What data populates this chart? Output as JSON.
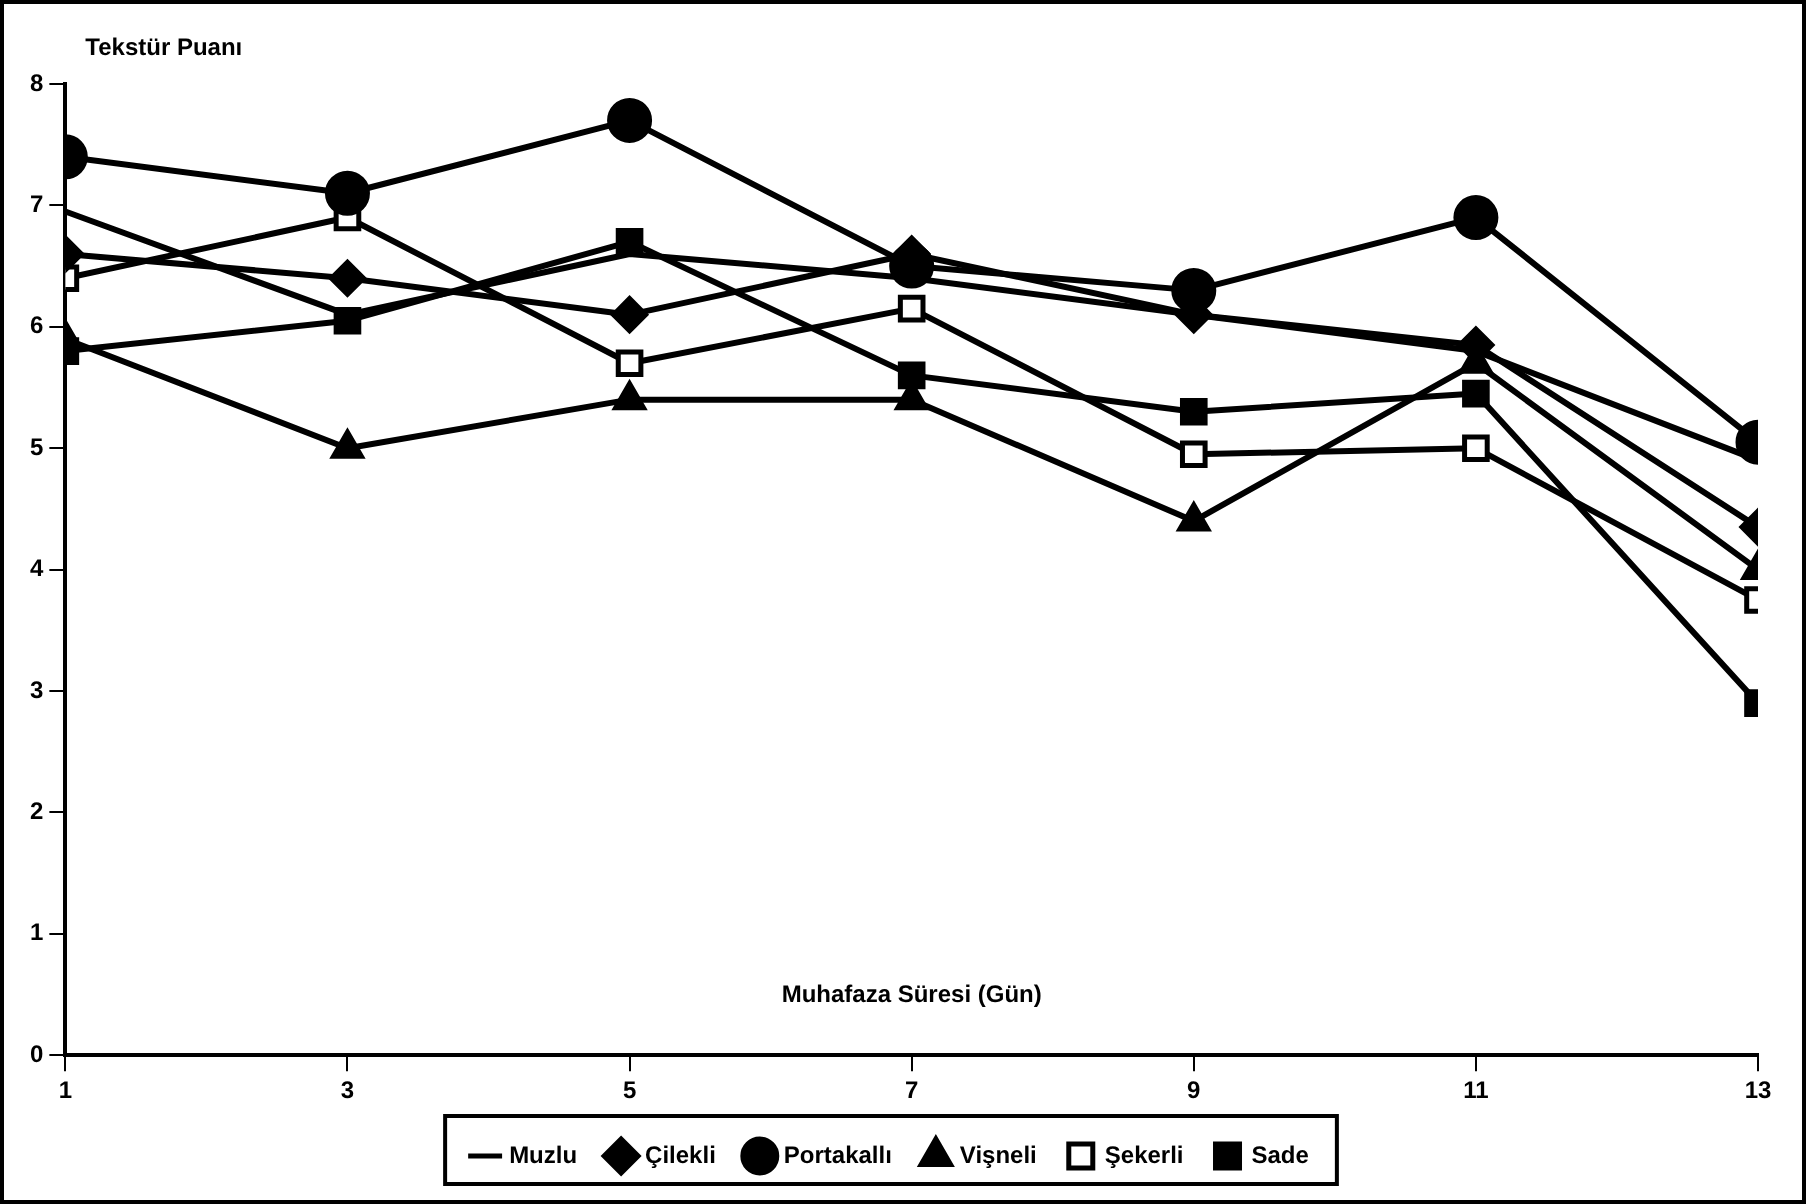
{
  "chart_data": {
    "type": "line",
    "xlabel": "Muhafaza Süresi (Gün)",
    "ylabel": "Tekstür Puanı",
    "x": [
      1,
      3,
      5,
      7,
      9,
      11,
      13
    ],
    "xlim": [
      1,
      13
    ],
    "xticks": [
      1,
      3,
      5,
      7,
      9,
      11,
      13
    ],
    "ylim": [
      0,
      8
    ],
    "yticks": [
      0,
      1,
      2,
      3,
      4,
      5,
      6,
      7,
      8
    ],
    "grid": false,
    "legend": "bottom",
    "line_style": "solid",
    "series": [
      {
        "name": "Muzlu",
        "color": "#000000",
        "marker": "none",
        "values": [
          6.95,
          6.1,
          6.6,
          6.4,
          6.1,
          5.8,
          4.9
        ]
      },
      {
        "name": "Çilekli",
        "color": "#000000",
        "marker": "diamond",
        "values": [
          6.6,
          6.4,
          6.1,
          6.6,
          6.1,
          5.85,
          4.35
        ]
      },
      {
        "name": "Portakallı",
        "color": "#000000",
        "marker": "circle",
        "values": [
          7.4,
          7.1,
          7.7,
          6.5,
          6.3,
          6.9,
          5.05
        ]
      },
      {
        "name": "Vişneli",
        "color": "#000000",
        "marker": "triangle",
        "values": [
          5.9,
          5.0,
          5.4,
          5.4,
          4.4,
          5.7,
          4.0
        ]
      },
      {
        "name": "Şekerli",
        "color": "#000000",
        "marker": "square",
        "values": [
          6.4,
          6.9,
          5.7,
          6.15,
          4.95,
          5.0,
          3.75
        ]
      },
      {
        "name": "Sade",
        "color": "#000000",
        "marker": "square",
        "values": [
          5.8,
          6.05,
          6.7,
          5.6,
          5.3,
          5.45,
          2.9
        ]
      }
    ]
  }
}
